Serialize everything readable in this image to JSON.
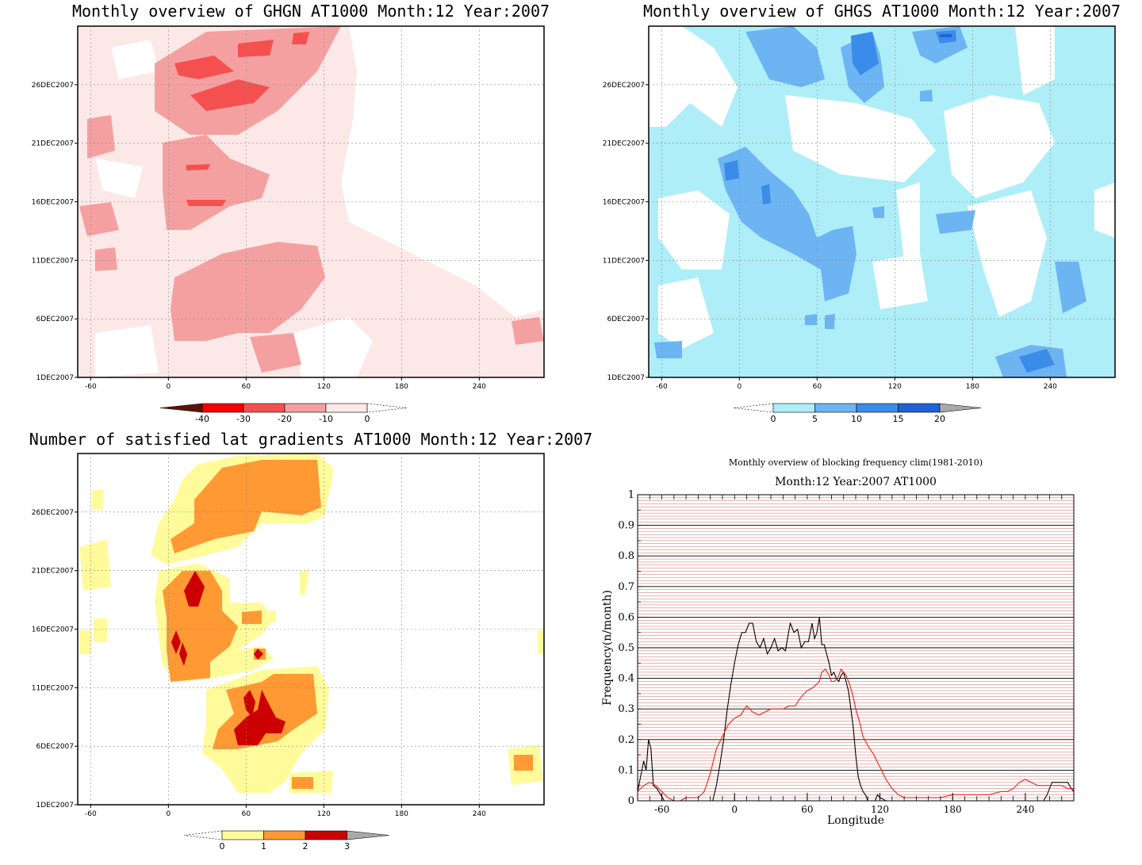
{
  "panels": {
    "ghgn": {
      "title": "Monthly overview of GHGN AT1000 Month:12 Year:2007",
      "colorbar": [
        "-40",
        "-30",
        "-20",
        "-10",
        "0"
      ],
      "colors": [
        "#5a1408",
        "#f70000",
        "#f55050",
        "#f5a0a0",
        "#fde8e8"
      ]
    },
    "ghgs": {
      "title": "Monthly overview of GHGS AT1000 Month:12 Year:2007",
      "colorbar": [
        "0",
        "5",
        "10",
        "15",
        "20"
      ],
      "colors": [
        "#aeeef8",
        "#6db4f3",
        "#3b8be8",
        "#1f62d6",
        "#a9a9a9"
      ]
    },
    "grad": {
      "title": "Number of satisfied lat gradients AT1000 Month:12 Year:2007",
      "colorbar": [
        "0",
        "1",
        "2",
        "3"
      ],
      "colors": [
        "#fffb9b",
        "#ff9933",
        "#cc0000",
        "#a9a9a9"
      ]
    },
    "shared": {
      "xticks": [
        "-60",
        "0",
        "60",
        "120",
        "180",
        "240"
      ],
      "yticks": [
        "1DEC2007",
        "6DEC2007",
        "11DEC2007",
        "16DEC2007",
        "21DEC2007",
        "26DEC2007"
      ]
    }
  },
  "chart_data": [
    {
      "type": "heatmap",
      "title": "Monthly overview of GHGN AT1000 Month:12 Year:2007",
      "x_ticks": [
        -60,
        0,
        60,
        120,
        180,
        240
      ],
      "y_ticks": [
        "1DEC2007",
        "6DEC2007",
        "11DEC2007",
        "16DEC2007",
        "21DEC2007",
        "26DEC2007"
      ],
      "color_levels": [
        -40,
        -30,
        -20,
        -10,
        0
      ]
    },
    {
      "type": "heatmap",
      "title": "Monthly overview of GHGS AT1000 Month:12 Year:2007",
      "x_ticks": [
        -60,
        0,
        60,
        120,
        180,
        240
      ],
      "y_ticks": [
        "1DEC2007",
        "6DEC2007",
        "11DEC2007",
        "16DEC2007",
        "21DEC2007",
        "26DEC2007"
      ],
      "color_levels": [
        0,
        5,
        10,
        15,
        20
      ]
    },
    {
      "type": "heatmap",
      "title": "Number of satisfied lat gradients AT1000 Month:12 Year:2007",
      "x_ticks": [
        -60,
        0,
        60,
        120,
        180,
        240
      ],
      "y_ticks": [
        "1DEC2007",
        "6DEC2007",
        "11DEC2007",
        "16DEC2007",
        "21DEC2007",
        "26DEC2007"
      ],
      "color_levels": [
        0,
        1,
        2,
        3
      ]
    },
    {
      "type": "line",
      "title": "Monthly overview of blocking frequency clim(1981-2010)",
      "subtitle": "Month:12 Year:2007  AT1000",
      "xlabel": "Longitude",
      "ylabel": "Frequency(n/month)",
      "xlim": [
        -80,
        280
      ],
      "ylim": [
        0,
        1
      ],
      "x_ticks": [
        -60,
        0,
        60,
        120,
        180,
        240
      ],
      "y_ticks": [
        0,
        0.1,
        0.2,
        0.3,
        0.4,
        0.5,
        0.6,
        0.7,
        0.8,
        0.9,
        1
      ],
      "grid": true,
      "series": [
        {
          "color": "#000000",
          "x": [
            -80,
            -77,
            -75,
            -73,
            -71,
            -69,
            -67,
            -64,
            -61,
            -58,
            -55,
            -52,
            -48,
            -40,
            -30,
            -22,
            -18,
            -15,
            -12,
            -9,
            -6,
            -3,
            0,
            3,
            6,
            9,
            12,
            15,
            18,
            21,
            24,
            27,
            30,
            33,
            36,
            39,
            42,
            45,
            46,
            49,
            52,
            55,
            58,
            61,
            64,
            66,
            68,
            70,
            72,
            74,
            76,
            78,
            80,
            82,
            84,
            86,
            88,
            90,
            92,
            94,
            96,
            98,
            100,
            102,
            104,
            106,
            108,
            110,
            112,
            114,
            116,
            118,
            120,
            125,
            130,
            140,
            160,
            200,
            240,
            255,
            258,
            260,
            262,
            265,
            270,
            275,
            278,
            280
          ],
          "y": [
            0.03,
            0.09,
            0.13,
            0.1,
            0.2,
            0.17,
            0.05,
            0.04,
            0.02,
            0.0,
            0.0,
            0.0,
            0.0,
            0.0,
            0.0,
            0.0,
            0.0,
            0.05,
            0.12,
            0.2,
            0.3,
            0.38,
            0.45,
            0.51,
            0.55,
            0.55,
            0.58,
            0.58,
            0.52,
            0.5,
            0.53,
            0.48,
            0.5,
            0.53,
            0.49,
            0.5,
            0.49,
            0.56,
            0.58,
            0.55,
            0.56,
            0.5,
            0.52,
            0.52,
            0.58,
            0.53,
            0.55,
            0.6,
            0.51,
            0.51,
            0.48,
            0.45,
            0.41,
            0.42,
            0.4,
            0.39,
            0.41,
            0.42,
            0.39,
            0.36,
            0.3,
            0.24,
            0.15,
            0.08,
            0.05,
            0.03,
            0.02,
            0.0,
            0.0,
            0.0,
            0.0,
            0.02,
            0.01,
            0.0,
            0.0,
            0.0,
            0.0,
            0.0,
            0.0,
            0.0,
            0.02,
            0.04,
            0.06,
            0.06,
            0.06,
            0.06,
            0.04,
            0.03
          ]
        },
        {
          "color": "#e8221c",
          "x": [
            -80,
            -75,
            -70,
            -65,
            -60,
            -55,
            -50,
            -45,
            -40,
            -30,
            -25,
            -20,
            -15,
            -10,
            -5,
            0,
            5,
            10,
            15,
            20,
            25,
            30,
            35,
            40,
            45,
            50,
            55,
            60,
            65,
            70,
            72,
            75,
            78,
            80,
            82,
            85,
            88,
            90,
            92,
            95,
            98,
            100,
            103,
            106,
            110,
            115,
            120,
            125,
            130,
            135,
            140,
            150,
            160,
            170,
            180,
            190,
            200,
            210,
            220,
            225,
            230,
            235,
            240,
            245,
            250,
            255,
            260,
            265,
            270,
            275,
            280
          ],
          "y": [
            0.03,
            0.05,
            0.06,
            0.05,
            0.03,
            0.01,
            0.0,
            0.0,
            0.01,
            0.01,
            0.03,
            0.09,
            0.17,
            0.21,
            0.25,
            0.27,
            0.28,
            0.31,
            0.29,
            0.28,
            0.29,
            0.3,
            0.3,
            0.3,
            0.31,
            0.31,
            0.34,
            0.36,
            0.37,
            0.39,
            0.42,
            0.43,
            0.41,
            0.39,
            0.39,
            0.4,
            0.43,
            0.42,
            0.41,
            0.38,
            0.34,
            0.3,
            0.26,
            0.21,
            0.18,
            0.15,
            0.11,
            0.07,
            0.04,
            0.02,
            0.01,
            0.01,
            0.01,
            0.01,
            0.02,
            0.02,
            0.02,
            0.02,
            0.03,
            0.03,
            0.04,
            0.06,
            0.07,
            0.06,
            0.05,
            0.05,
            0.05,
            0.05,
            0.05,
            0.04,
            0.04
          ]
        }
      ]
    }
  ],
  "line_chart": {
    "title": "Monthly overview of blocking frequency clim(1981-2010)",
    "subtitle": "Month:12 Year:2007  AT1000",
    "xlabel": "Longitude",
    "ylabel": "Frequency(n/month)",
    "xticks": [
      "-60",
      "0",
      "60",
      "120",
      "180",
      "240"
    ],
    "yticks": [
      "0",
      "0.1",
      "0.2",
      "0.3",
      "0.4",
      "0.5",
      "0.6",
      "0.7",
      "0.8",
      "0.9",
      "1"
    ]
  }
}
